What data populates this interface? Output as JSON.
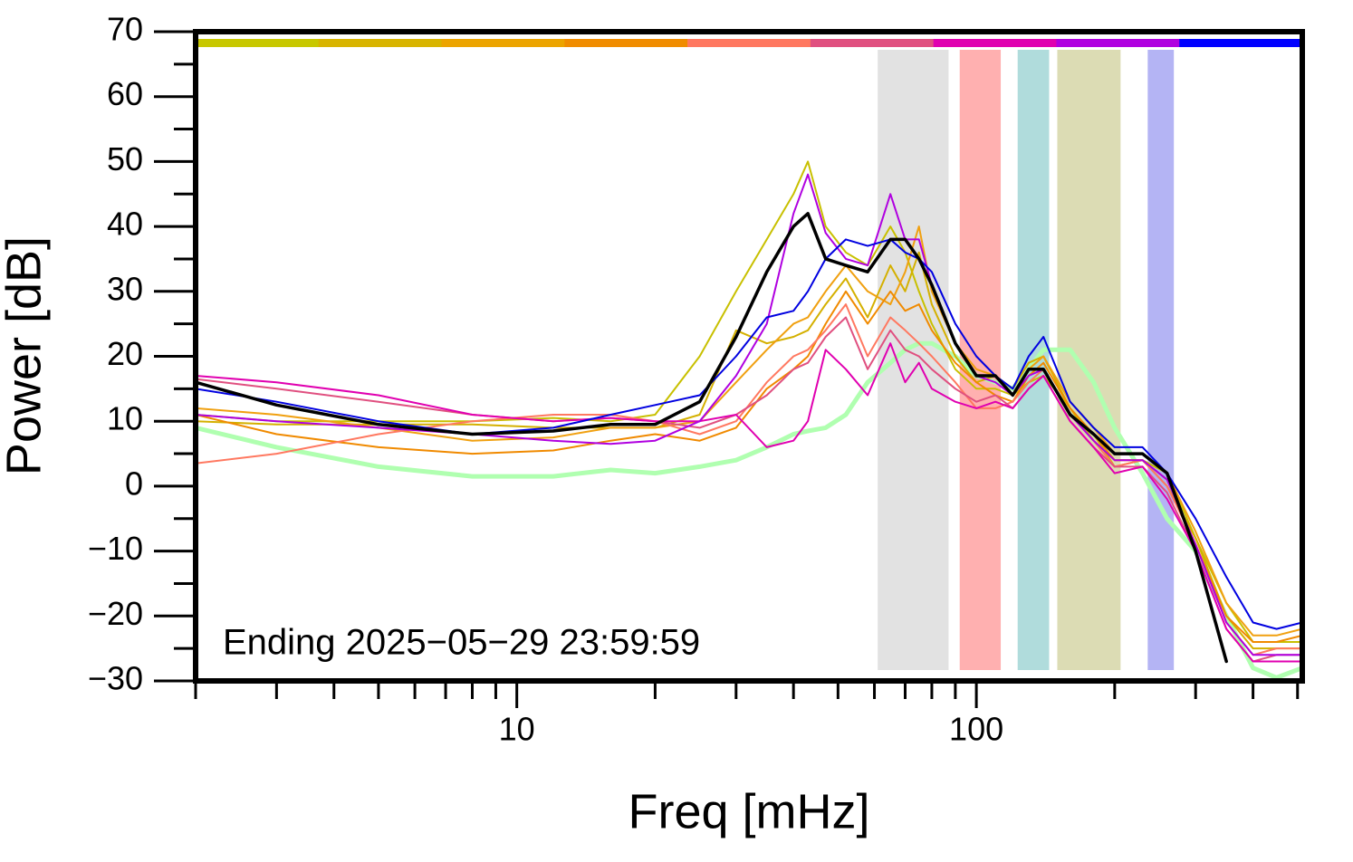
{
  "chart_data": {
    "type": "line",
    "x_label": "Freq [mHz]",
    "y_label": "Power [dB]",
    "annotation": "Ending 2025−05−29 23:59:59",
    "log_x": true,
    "xlim": [
      2,
      512
    ],
    "ylim": [
      -30,
      70
    ],
    "xticks": [
      10,
      100
    ],
    "xminorticks": [
      2,
      3,
      4,
      5,
      6,
      7,
      8,
      9,
      20,
      30,
      40,
      50,
      60,
      70,
      80,
      90,
      200,
      300,
      400,
      500
    ],
    "yticks": [
      {
        "value": -30,
        "label": "−30"
      },
      {
        "value": -20,
        "label": "−20"
      },
      {
        "value": -10,
        "label": "−10"
      },
      0,
      10,
      20,
      30,
      40,
      50,
      60,
      70
    ],
    "yminorticks": [
      -25,
      -15,
      -5,
      5,
      15,
      25,
      35,
      45,
      55,
      65
    ],
    "top_bar_colors": [
      "#c8c800",
      "#d8b400",
      "#eca400",
      "#f08c00",
      "#ff7860",
      "#e05080",
      "#e000b0",
      "#b000e0",
      "#0000ff"
    ],
    "bands": [
      {
        "xlim": [
          61,
          87
        ],
        "color": "#e2e2e2"
      },
      {
        "xlim": [
          92,
          113
        ],
        "color": "#ffb0b0"
      },
      {
        "xlim": [
          123,
          144
        ],
        "color": "#b0dcdc"
      },
      {
        "xlim": [
          150,
          206
        ],
        "color": "#dcdcb4"
      },
      {
        "xlim": [
          236,
          269
        ],
        "color": "#b4b4f4"
      }
    ],
    "x": [
      2,
      3,
      5,
      8,
      12,
      16,
      20,
      25,
      30,
      35,
      40,
      43,
      47,
      52,
      58,
      65,
      70,
      75,
      80,
      90,
      100,
      110,
      120,
      130,
      140,
      160,
      180,
      200,
      230,
      260,
      300,
      350,
      400,
      450,
      512
    ],
    "series": [
      {
        "color": "#b0ffb0",
        "width": 5,
        "values": [
          9,
          6,
          3,
          1.5,
          1.5,
          2.5,
          2,
          3,
          4,
          6,
          8,
          8.5,
          9,
          11,
          16,
          19,
          21,
          22,
          22,
          20,
          17,
          16,
          15,
          18,
          21,
          21,
          16,
          9,
          2,
          -5,
          -10,
          -20,
          -28,
          -29.5,
          -28
        ]
      },
      {
        "color": "#c8c000",
        "width": 2,
        "values": [
          11,
          10,
          10,
          10,
          10.5,
          10,
          11,
          20,
          30,
          38,
          45,
          50,
          40,
          36,
          34,
          40,
          36,
          30,
          25,
          18,
          15,
          15,
          14,
          16,
          17,
          12,
          7,
          4,
          4,
          2,
          -8,
          -18,
          -24,
          -24,
          -24
        ]
      },
      {
        "color": "#d4b000",
        "width": 2,
        "values": [
          10,
          9.5,
          9.5,
          9.5,
          9,
          9,
          9,
          11,
          24,
          22,
          23,
          24,
          28,
          32,
          26,
          34,
          30,
          36,
          28,
          20,
          16,
          17,
          15,
          19,
          20,
          12,
          8,
          3,
          4,
          0,
          -8,
          -20,
          -25,
          -25,
          -25
        ]
      },
      {
        "color": "#f0a010",
        "width": 2,
        "values": [
          12,
          11,
          9,
          7,
          7.5,
          9,
          9,
          10,
          16,
          21,
          25,
          26,
          30,
          34,
          30,
          28,
          33,
          40,
          30,
          22,
          18,
          17,
          14,
          18,
          20,
          13,
          9,
          5,
          5,
          2,
          -7,
          -18,
          -23,
          -23,
          -22
        ]
      },
      {
        "color": "#f08a00",
        "width": 2,
        "values": [
          11,
          8,
          6,
          5,
          5.5,
          7,
          8,
          7,
          9,
          15,
          18,
          20,
          25,
          30,
          25,
          30,
          27,
          28,
          24,
          19,
          16,
          14,
          13,
          17,
          19,
          12,
          8,
          4,
          4,
          1,
          -9,
          -20,
          -24,
          -24,
          -23
        ]
      },
      {
        "color": "#ff7860",
        "width": 2,
        "values": [
          3.5,
          5,
          8,
          10,
          11,
          11,
          10,
          8,
          10,
          16,
          20,
          21,
          24,
          28,
          20,
          26,
          24,
          22,
          20,
          16,
          12,
          12,
          13,
          16,
          18,
          11,
          7,
          3,
          4,
          0,
          -9,
          -21,
          -26,
          -25,
          -25
        ]
      },
      {
        "color": "#e05080",
        "width": 2,
        "values": [
          16.5,
          15,
          13,
          11,
          10,
          10.5,
          10,
          9,
          11,
          14,
          18,
          19,
          23,
          26,
          18,
          24,
          21,
          20,
          18,
          15,
          13,
          14,
          12,
          15,
          17,
          10,
          6,
          3,
          3,
          -1,
          -10,
          -22,
          -27,
          -26,
          -26
        ]
      },
      {
        "color": "#e000b0",
        "width": 2,
        "values": [
          17,
          16,
          14,
          11,
          10,
          10.5,
          10,
          10,
          11,
          6,
          7,
          10,
          21,
          18,
          14,
          22,
          16,
          19,
          15,
          13,
          12,
          13,
          12,
          15,
          17,
          10,
          6,
          2,
          3,
          -2,
          -10,
          -22,
          -27,
          -27,
          -27
        ]
      },
      {
        "color": "#b000e0",
        "width": 2,
        "values": [
          11,
          10,
          9,
          8,
          7,
          6.5,
          7,
          10,
          17,
          25,
          42,
          48,
          39,
          35,
          34,
          45,
          38,
          38,
          31,
          22,
          17,
          16,
          14,
          17,
          18,
          11,
          7,
          4,
          4,
          1,
          -9,
          -21,
          -26,
          -26,
          -26
        ]
      },
      {
        "color": "#0000e0",
        "width": 2,
        "values": [
          15,
          13,
          10,
          8,
          9,
          11,
          12.5,
          14,
          20,
          26,
          27,
          30,
          35,
          38,
          37,
          38,
          36,
          35,
          33,
          25,
          20,
          17,
          15,
          20,
          23,
          13,
          9,
          6,
          6,
          2,
          -5,
          -14,
          -21,
          -22,
          -21
        ]
      },
      {
        "color": "#000000",
        "width": 3.5,
        "values": [
          16,
          12.5,
          9.5,
          8,
          8.5,
          9.5,
          9.5,
          13,
          23,
          33,
          40,
          42,
          35,
          34,
          33,
          38,
          38,
          35,
          31,
          22,
          17,
          17,
          14,
          18,
          18,
          11,
          8,
          5,
          5,
          2,
          -10,
          -27,
          null,
          null,
          null
        ]
      }
    ]
  }
}
